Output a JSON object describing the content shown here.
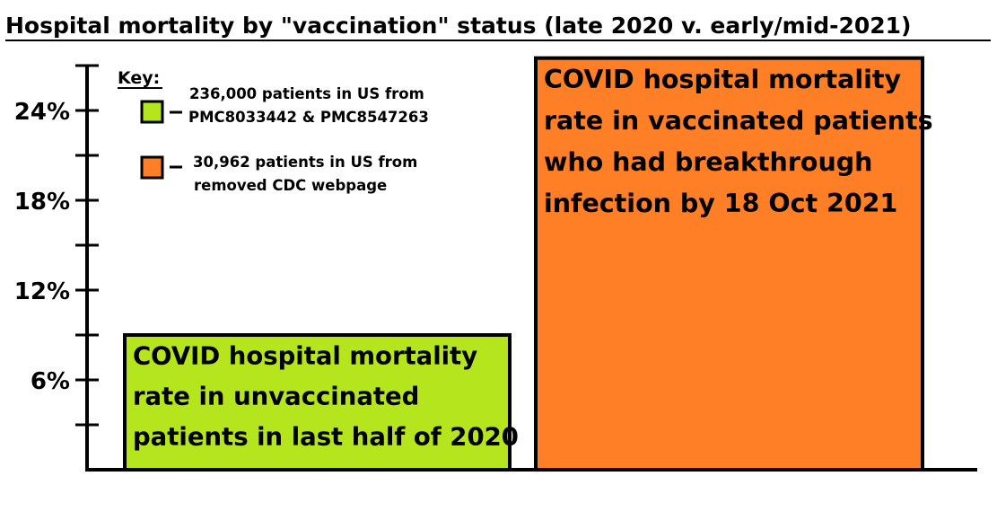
{
  "chart_data": {
    "type": "bar",
    "title": "Hospital mortality by \"vaccination\" status (late 2020 v. early/mid-2021)",
    "ylim": [
      0,
      27
    ],
    "ytick_values": [
      6,
      12,
      18,
      24
    ],
    "ytick_labels": [
      "6%",
      "12%",
      "18%",
      "24%"
    ],
    "minor_tick_values": [
      3,
      9,
      15,
      21,
      27
    ],
    "grid": false,
    "legend_title": "Key:",
    "legend_position": "top-left",
    "series": [
      {
        "bar_lines": [
          "COVID hospital mortality",
          "rate in unvaccinated",
          "patients in last half of 2020"
        ],
        "value": 9,
        "color": "#b5e61d",
        "legend_lines": [
          "236,000 patients in US from",
          "PMC8033442 & PMC8547263"
        ]
      },
      {
        "bar_lines": [
          "COVID hospital mortality",
          "rate in vaccinated patients",
          "who had breakthrough",
          "infection by 18 Oct 2021"
        ],
        "value": 27.5,
        "color": "#ff7f27",
        "legend_lines": [
          "30,962 patients in US from",
          "removed CDC webpage"
        ]
      }
    ]
  }
}
